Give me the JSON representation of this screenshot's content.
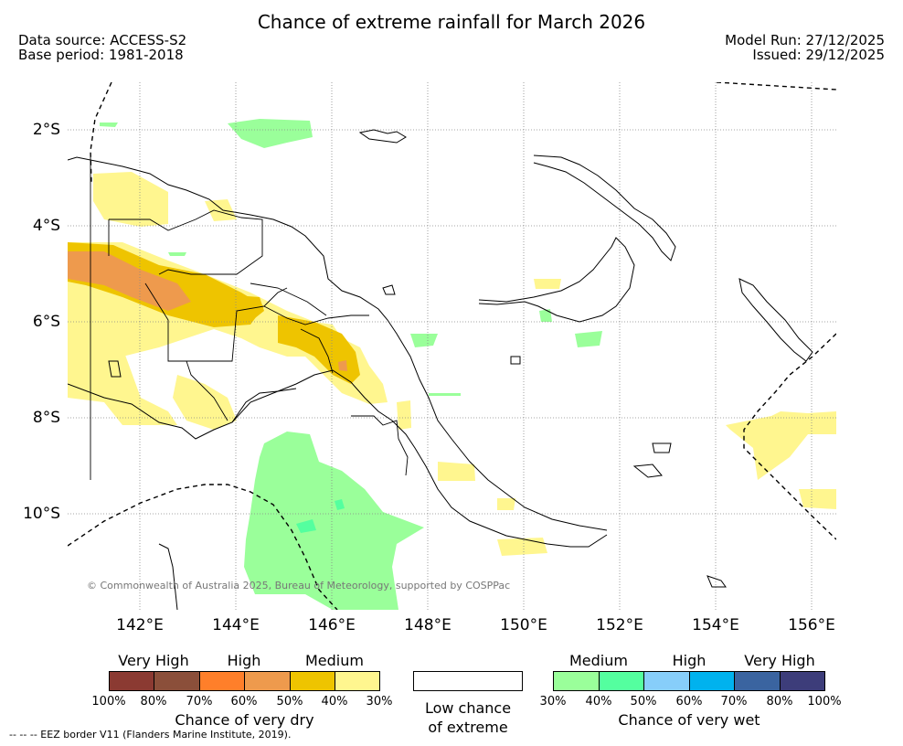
{
  "title": "Chance of extreme rainfall for March 2026",
  "header": {
    "data_source": "Data source: ACCESS-S2",
    "base_period": "Base period: 1981-2018",
    "model_run": "Model Run: 27/12/2025",
    "issued": "Issued: 29/12/2025"
  },
  "map": {
    "lat_labels": [
      "2°S",
      "4°S",
      "6°S",
      "8°S",
      "10°S"
    ],
    "lon_labels": [
      "142°E",
      "144°E",
      "146°E",
      "148°E",
      "150°E",
      "152°E",
      "154°E",
      "156°E"
    ],
    "copyright": "© Commonwealth of Australia 2025, Bureau of Meteorology, supported by COSPPac"
  },
  "legend": {
    "dry": {
      "categories": [
        "Very High",
        "High",
        "Medium"
      ],
      "percents": [
        "100%",
        "80%",
        "70%",
        "60%",
        "50%",
        "40%",
        "30%"
      ],
      "colors": [
        "#8b3a32",
        "#8b4f3a",
        "#ff7f2a",
        "#ee9a4d",
        "#eec400",
        "#fff68f"
      ],
      "title": "Chance of very dry"
    },
    "low": {
      "title_line1": "Low chance",
      "title_line2": "of extreme",
      "color": "#ffffff"
    },
    "wet": {
      "categories": [
        "Medium",
        "High",
        "Very High"
      ],
      "percents": [
        "30%",
        "40%",
        "50%",
        "60%",
        "70%",
        "80%",
        "100%"
      ],
      "colors": [
        "#9aff9a",
        "#54ff9f",
        "#87cefa",
        "#00b2ee",
        "#3a64a0",
        "#3d3d7a"
      ],
      "title": "Chance of very wet"
    }
  },
  "footnote": "--  --  -- EEZ border V11 (Flanders Marine Institute, 2019)."
}
